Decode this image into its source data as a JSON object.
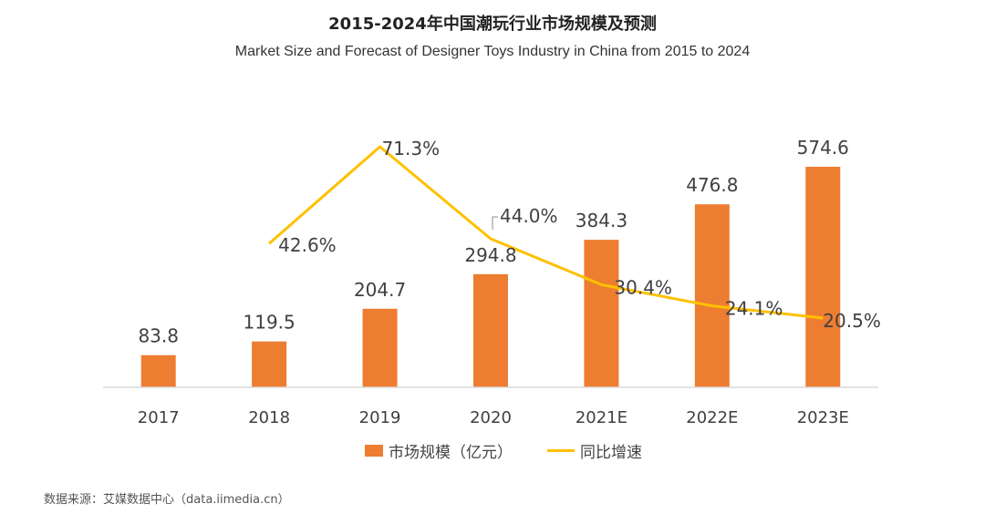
{
  "colors": {
    "bar": "#ED7D31",
    "line": "#FFC000",
    "axis": "#D9D9D9",
    "text": "#404040"
  },
  "header": {
    "title_cn": "2015-2024年中国潮玩行业市场规模及预测",
    "title_en": "Market Size and Forecast of Designer Toys Industry in China from 2015 to 2024"
  },
  "legend": {
    "bar_label": "市场规模（亿元）",
    "line_label": "同比增速"
  },
  "footer": {
    "source": "数据来源：艾媒数据中心（data.iimedia.cn）"
  },
  "chart_data": {
    "type": "bar",
    "title": "2015-2024年中国潮玩行业市场规模及预测",
    "subtitle": "Market Size and Forecast of Designer Toys Industry in China from 2015 to 2024",
    "categories": [
      "2017",
      "2018",
      "2019",
      "2020",
      "2021E",
      "2022E",
      "2023E"
    ],
    "series": [
      {
        "name": "市场规模（亿元）",
        "kind": "bar",
        "values": [
          83.8,
          119.5,
          204.7,
          294.8,
          384.3,
          476.8,
          574.6
        ],
        "labels": [
          "83.8",
          "119.5",
          "204.7",
          "294.8",
          "384.3",
          "476.8",
          "574.6"
        ]
      },
      {
        "name": "同比增速",
        "kind": "line",
        "values": [
          null,
          42.6,
          71.3,
          44.0,
          30.4,
          24.1,
          20.5
        ],
        "labels": [
          "",
          "42.6%",
          "71.3%",
          "44.0%",
          "30.4%",
          "24.1%",
          "20.5%"
        ]
      }
    ],
    "ylim_bar": [
      0,
      640
    ],
    "ylim_line": [
      0,
      80
    ],
    "grid": false,
    "legend": "bottom"
  }
}
